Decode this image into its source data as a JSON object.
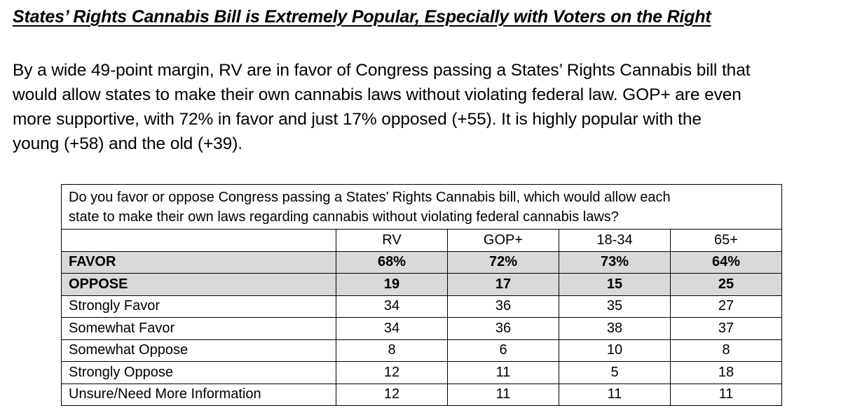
{
  "title": "States’ Rights Cannabis Bill is Extremely Popular, Especially with Voters on the Right",
  "paragraph": {
    "line1": "By a wide 49-point margin, RV are in favor of Congress passing a States’ Rights Cannabis bill that",
    "line2": "would allow states to make their own cannabis laws without violating federal law. GOP+ are even",
    "line3": "more supportive, with 72% in favor and just 17% opposed (+55). It is highly popular with the",
    "line4": "young (+58) and the old (+39)."
  },
  "table": {
    "question_line1": "Do you favor or oppose Congress passing a States’ Rights Cannabis bill, which would allow each",
    "question_line2": "state to make their own laws regarding cannabis without violating federal cannabis laws?",
    "columns": [
      "RV",
      "GOP+",
      "18-34",
      "65+"
    ],
    "rows": [
      {
        "label": "FAVOR",
        "values": [
          "68%",
          "72%",
          "73%",
          "64%"
        ],
        "shaded": true
      },
      {
        "label": "OPPOSE",
        "values": [
          "19",
          "17",
          "15",
          "25"
        ],
        "shaded": true
      },
      {
        "label": "Strongly Favor",
        "values": [
          "34",
          "36",
          "35",
          "27"
        ],
        "shaded": false
      },
      {
        "label": "Somewhat Favor",
        "values": [
          "34",
          "36",
          "38",
          "37"
        ],
        "shaded": false
      },
      {
        "label": "Somewhat Oppose",
        "values": [
          "8",
          "6",
          "10",
          "8"
        ],
        "shaded": false
      },
      {
        "label": "Strongly Oppose",
        "values": [
          "12",
          "11",
          "5",
          "18"
        ],
        "shaded": false
      },
      {
        "label": "Unsure/Need More Information",
        "values": [
          "12",
          "11",
          "11",
          "11"
        ],
        "shaded": false
      }
    ]
  },
  "colors": {
    "shade": "#d9d9d9",
    "text": "#000000"
  }
}
